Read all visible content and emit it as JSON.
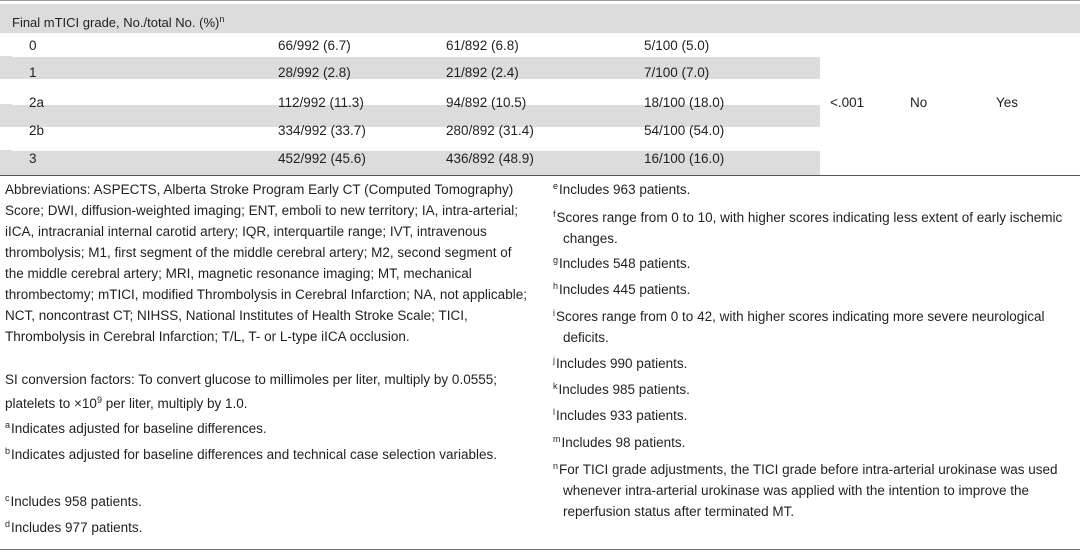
{
  "table": {
    "header_label": "Final mTICI grade, No./total No. (%)",
    "header_marker": "n",
    "rows": [
      {
        "grade": "0",
        "c1": "66/992 (6.7)",
        "c2": "61/892 (6.8)",
        "c3": "5/100 (5.0)"
      },
      {
        "grade": "1",
        "c1": "28/992 (2.8)",
        "c2": "21/892 (2.4)",
        "c3": "7/100 (7.0)"
      },
      {
        "grade": "2a",
        "c1": "112/992 (11.3)",
        "c2": "94/892 (10.5)",
        "c3": "18/100 (18.0)"
      },
      {
        "grade": "2b",
        "c1": "334/992 (33.7)",
        "c2": "280/892 (31.4)",
        "c3": "54/100 (54.0)"
      },
      {
        "grade": "3",
        "c1": "452/992 (45.6)",
        "c2": "436/892 (48.9)",
        "c3": "16/100 (16.0)"
      }
    ],
    "p_value": "<.001",
    "adjusted_a": "No",
    "adjusted_b": "Yes"
  },
  "footnotes": {
    "abbreviations": "Abbreviations: ASPECTS, Alberta Stroke Program Early CT (Computed Tomography) Score; DWI, diffusion-weighted imaging; ENT, emboli to new territory; IA, intra-arterial; iICA, intracranial internal carotid artery; IQR, interquartile range; IVT, intravenous thrombolysis; M1, first segment of the middle cerebral artery; M2, second segment of the middle cerebral artery; MRI, magnetic resonance imaging; MT, mechanical thrombectomy; mTICI, modified Thrombolysis in Cerebral Infarction; NA, not applicable; NCT, noncontrast CT; NIHSS, National Institutes of Health Stroke Scale; TICI, Thrombolysis in Cerebral Infarction; T/L, T- or L-type iICA occlusion.",
    "si_part1": "SI conversion factors: To convert glucose to millimoles per liter, multiply by 0.0555; platelets to ×10",
    "si_exp": "9",
    "si_part2": " per liter, multiply by 1.0.",
    "left": [
      {
        "marker": "a",
        "text": "Indicates adjusted for baseline differences."
      },
      {
        "marker": "b",
        "text": "Indicates adjusted for baseline differences and technical case selection variables."
      },
      {
        "marker": "c",
        "text": "Includes 958 patients."
      },
      {
        "marker": "d",
        "text": "Includes 977 patients."
      }
    ],
    "right": [
      {
        "marker": "e",
        "text": "Includes 963 patients."
      },
      {
        "marker": "f",
        "text": "Scores range from 0 to 10, with higher scores indicating less extent of early ischemic changes."
      },
      {
        "marker": "g",
        "text": "Includes 548 patients."
      },
      {
        "marker": "h",
        "text": "Includes 445 patients."
      },
      {
        "marker": "i",
        "text": "Scores range from 0 to 42, with higher scores indicating more severe neurological deficits."
      },
      {
        "marker": "j",
        "text": "Includes 990 patients."
      },
      {
        "marker": "k",
        "text": "Includes 985 patients."
      },
      {
        "marker": "l",
        "text": "Includes 933 patients."
      },
      {
        "marker": "m",
        "text": "Includes 98 patients."
      },
      {
        "marker": "n",
        "text": "For TICI grade adjustments, the TICI grade before intra-arterial urokinase was used whenever intra-arterial urokinase was applied with the intention to improve the reperfusion status after terminated MT."
      }
    ]
  }
}
